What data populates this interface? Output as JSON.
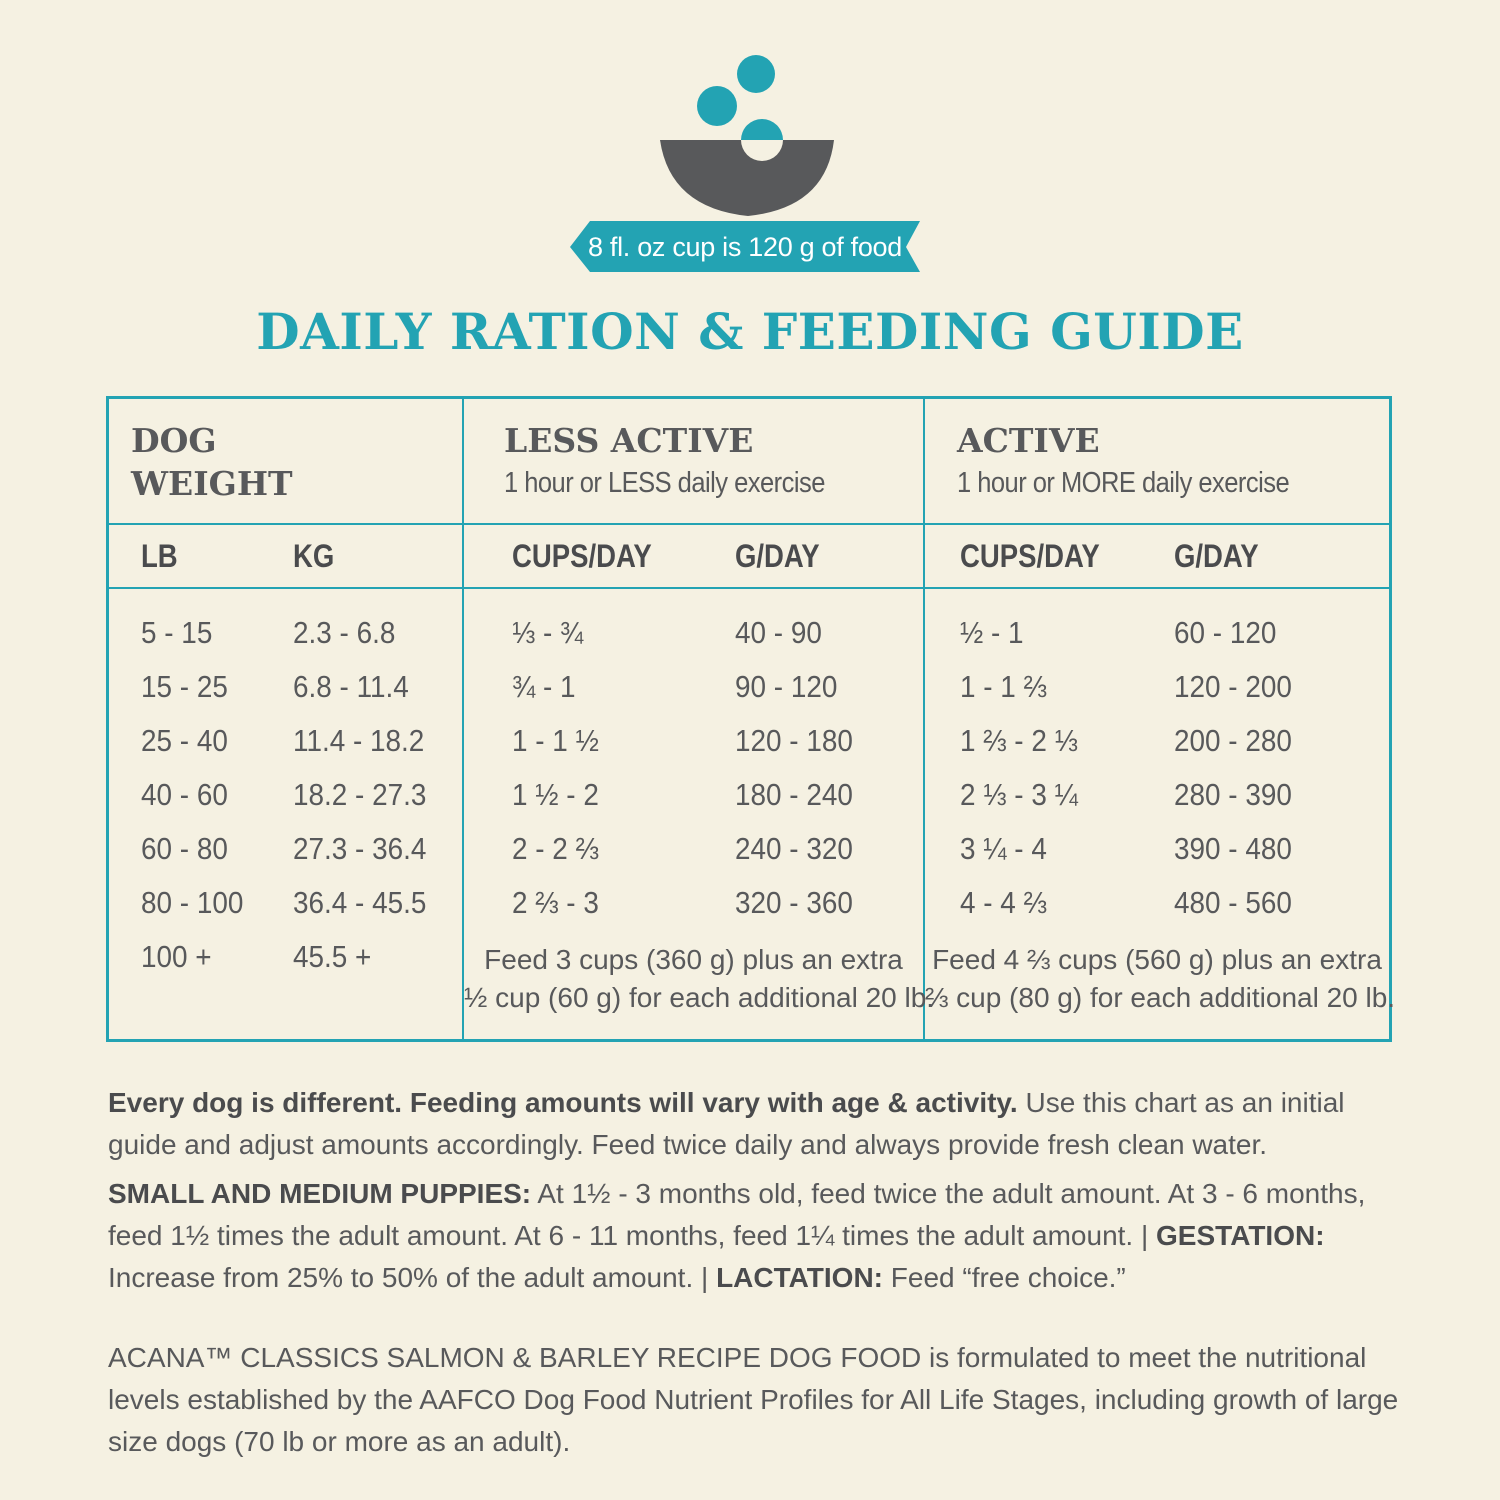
{
  "banner": {
    "text": "8 fl. oz cup is 120 g of food"
  },
  "title": "DAILY RATION & FEEDING GUIDE",
  "colors": {
    "accent": "#23a3b3",
    "bowl": "#58595b",
    "background": "#f5f1e2"
  },
  "icons": {
    "logo": "bowl-with-food-icon"
  },
  "table": {
    "group_headers": {
      "weight": {
        "line1": "DOG",
        "line2": "WEIGHT"
      },
      "less_active": {
        "title": "LESS ACTIVE",
        "sub": "1 hour or LESS daily exercise"
      },
      "active": {
        "title": "ACTIVE",
        "sub": "1 hour or MORE daily exercise"
      }
    },
    "columns": [
      "LB",
      "KG",
      "CUPS/DAY",
      "G/DAY",
      "CUPS/DAY",
      "G/DAY"
    ],
    "rows": [
      [
        "5 - 15",
        "2.3 - 6.8",
        "⅓ - ¾",
        "40 - 90",
        "½ - 1",
        "60 - 120"
      ],
      [
        "15 - 25",
        "6.8 - 11.4",
        "¾ - 1",
        "90 - 120",
        "1 - 1 ⅔",
        "120 - 200"
      ],
      [
        "25 - 40",
        "11.4 - 18.2",
        "1 - 1 ½",
        "120 - 180",
        "1 ⅔ - 2 ⅓",
        "200 - 280"
      ],
      [
        "40 - 60",
        "18.2 - 27.3",
        "1 ½ - 2",
        "180 - 240",
        "2 ⅓ - 3 ¼",
        "280 - 390"
      ],
      [
        "60 - 80",
        "27.3 - 36.4",
        "2 - 2 ⅔",
        "240 - 320",
        "3 ¼ - 4",
        "390 - 480"
      ],
      [
        "80 - 100",
        "36.4 - 45.5",
        "2 ⅔ - 3",
        "320 - 360",
        "4 - 4 ⅔",
        "480 - 560"
      ]
    ],
    "last_row": {
      "lb": "100 +",
      "kg": "45.5 +",
      "less_active_note": [
        "Feed 3 cups (360 g) plus an extra",
        "½ cup (60 g) for each additional 20 lb."
      ],
      "active_note": [
        "Feed 4 ⅔ cups (560 g) plus an extra",
        "⅔ cup (80 g) for each additional 20 lb."
      ]
    }
  },
  "notes": {
    "p1_bold": "Every dog is different. Feeding amounts will vary with age & activity.",
    "p1_rest": " Use this chart as an initial guide and adjust amounts accordingly. Feed twice daily and always provide fresh clean water.",
    "p2_bold1": "SMALL AND MEDIUM PUPPIES:",
    "p2_text1": " At 1½ - 3 months old, feed twice the adult amount. At 3 - 6 months, feed 1½ times the adult amount. At 6 - 11 months, feed 1¼ times the adult amount.  |  ",
    "p2_bold2": "GESTATION:",
    "p2_text2": " Increase from 25% to 50% of the adult amount.  |  ",
    "p2_bold3": "LACTATION:",
    "p2_text3": " Feed “free choice.”",
    "p3": "ACANA™ CLASSICS SALMON & BARLEY RECIPE DOG FOOD is formulated to meet the nutritional levels established by the AAFCO Dog Food Nutrient Profiles for All Life Stages, including growth of large size dogs (70 lb or more as an adult)."
  }
}
